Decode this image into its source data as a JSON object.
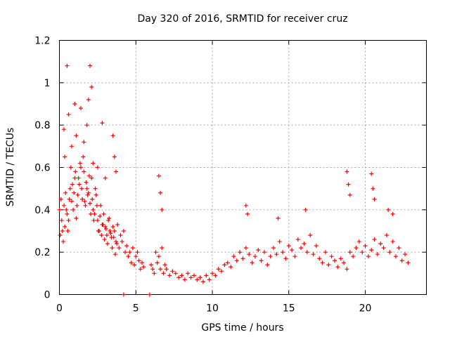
{
  "chart_data": {
    "type": "scatter",
    "title": "Day 320 of 2016, SRMTID for receiver cruz",
    "xlabel": "GPS time / hours",
    "ylabel": "SRMTID / TECUs",
    "xlim": [
      0,
      24
    ],
    "ylim": [
      0,
      1.2
    ],
    "grid": true,
    "marker": "plus",
    "color": "#ff0000",
    "x_ticks": [
      0,
      5,
      10,
      15,
      20
    ],
    "x_tick_labels": [
      "0",
      "5",
      "10",
      "15",
      "20"
    ],
    "y_ticks": [
      0,
      0.2,
      0.4,
      0.6,
      0.8,
      1.0,
      1.2
    ],
    "y_tick_labels": [
      "0",
      "0.2",
      "0.4",
      "0.6",
      "0.8",
      "1",
      "1.2"
    ],
    "series": [
      {
        "name": "SRMTID",
        "x": [
          0.0,
          0.1,
          0.2,
          0.3,
          0.4,
          0.5,
          0.6,
          0.7,
          0.8,
          0.9,
          1.0,
          1.1,
          1.2,
          1.3,
          1.4,
          1.5,
          1.6,
          1.7,
          1.8,
          1.9,
          2.0,
          2.1,
          2.2,
          2.3,
          2.4,
          2.5,
          2.6,
          2.7,
          2.8,
          2.9,
          3.0,
          3.1,
          3.2,
          3.3,
          3.4,
          3.5,
          3.6,
          3.7,
          3.8,
          3.9,
          4.0,
          4.1,
          4.2,
          4.3,
          4.4,
          4.5,
          4.6,
          4.7,
          4.8,
          4.9,
          5.0,
          5.1,
          5.2,
          5.3,
          5.4,
          5.5,
          6.0,
          6.1,
          6.2,
          6.3,
          6.4,
          6.5,
          6.6,
          6.7,
          6.8,
          6.9,
          7.0,
          7.2,
          7.4,
          7.6,
          7.8,
          8.0,
          8.2,
          8.4,
          8.6,
          8.8,
          9.0,
          9.2,
          9.4,
          9.6,
          9.8,
          10.0,
          10.2,
          10.4,
          10.6,
          10.8,
          11.0,
          11.2,
          11.4,
          11.6,
          11.8,
          12.0,
          12.2,
          12.4,
          12.6,
          12.8,
          13.0,
          13.2,
          13.4,
          13.6,
          13.8,
          14.0,
          14.2,
          14.4,
          14.6,
          14.8,
          15.0,
          15.2,
          15.4,
          15.6,
          15.8,
          16.0,
          16.2,
          16.4,
          16.6,
          16.8,
          17.0,
          17.2,
          17.4,
          17.6,
          17.8,
          18.0,
          18.2,
          18.4,
          18.6,
          18.8,
          19.0,
          19.2,
          19.4,
          19.6,
          19.8,
          20.0,
          20.2,
          20.4,
          20.6,
          20.8,
          21.0,
          21.2,
          21.4,
          21.6,
          21.8,
          22.0,
          22.2,
          22.4,
          22.6,
          22.8,
          0.05,
          0.15,
          0.25,
          0.35,
          0.45,
          0.55,
          0.65,
          0.75,
          0.85,
          0.95,
          1.05,
          1.15,
          1.25,
          1.35,
          1.45,
          1.55,
          1.65,
          1.75,
          1.85,
          1.95,
          2.05,
          2.15,
          2.25,
          2.35,
          2.45,
          2.55,
          2.65,
          2.75,
          2.85,
          2.95,
          3.05,
          3.15,
          3.25,
          3.35,
          3.45,
          3.55,
          3.65,
          3.75,
          0.3,
          0.35,
          0.5,
          0.6,
          0.8,
          1.0,
          1.1,
          1.4,
          1.6,
          1.8,
          1.9,
          2.0,
          2.1,
          2.2,
          2.5,
          2.8,
          3.0,
          3.5,
          3.6,
          3.7,
          6.5,
          6.6,
          6.7,
          12.2,
          12.3,
          14.3,
          16.1,
          18.8,
          18.9,
          19.0,
          20.4,
          20.5,
          20.6,
          21.5,
          21.8,
          4.2,
          5.9
        ],
        "y": [
          0.4,
          0.45,
          0.3,
          0.42,
          0.48,
          0.38,
          0.35,
          0.5,
          0.44,
          0.4,
          0.55,
          0.36,
          0.47,
          0.52,
          0.6,
          0.45,
          0.58,
          0.42,
          0.5,
          0.48,
          0.43,
          0.55,
          0.4,
          0.38,
          0.47,
          0.35,
          0.3,
          0.42,
          0.33,
          0.38,
          0.32,
          0.28,
          0.35,
          0.3,
          0.27,
          0.32,
          0.3,
          0.25,
          0.33,
          0.22,
          0.28,
          0.25,
          0.3,
          0.2,
          0.23,
          0.18,
          0.2,
          0.15,
          0.22,
          0.14,
          0.18,
          0.2,
          0.16,
          0.12,
          0.15,
          0.13,
          0.14,
          0.12,
          0.1,
          0.2,
          0.15,
          0.18,
          0.12,
          0.22,
          0.1,
          0.14,
          0.12,
          0.09,
          0.11,
          0.1,
          0.08,
          0.09,
          0.07,
          0.1,
          0.08,
          0.09,
          0.07,
          0.08,
          0.06,
          0.09,
          0.07,
          0.1,
          0.09,
          0.12,
          0.11,
          0.14,
          0.15,
          0.13,
          0.18,
          0.16,
          0.2,
          0.17,
          0.22,
          0.19,
          0.15,
          0.18,
          0.21,
          0.16,
          0.2,
          0.14,
          0.18,
          0.22,
          0.19,
          0.25,
          0.2,
          0.17,
          0.23,
          0.21,
          0.18,
          0.26,
          0.22,
          0.24,
          0.2,
          0.28,
          0.19,
          0.23,
          0.17,
          0.15,
          0.2,
          0.14,
          0.18,
          0.16,
          0.13,
          0.17,
          0.15,
          0.12,
          0.2,
          0.18,
          0.22,
          0.25,
          0.2,
          0.23,
          0.18,
          0.21,
          0.26,
          0.19,
          0.24,
          0.22,
          0.28,
          0.2,
          0.25,
          0.18,
          0.22,
          0.16,
          0.19,
          0.15,
          0.28,
          0.35,
          0.25,
          0.32,
          0.4,
          0.3,
          0.45,
          0.6,
          0.52,
          0.48,
          0.58,
          0.42,
          0.55,
          0.62,
          0.5,
          0.65,
          0.44,
          0.53,
          0.47,
          0.56,
          0.38,
          0.45,
          0.35,
          0.5,
          0.42,
          0.3,
          0.37,
          0.28,
          0.33,
          0.26,
          0.31,
          0.24,
          0.36,
          0.29,
          0.22,
          0.27,
          0.19,
          0.24,
          0.78,
          0.65,
          1.08,
          0.85,
          0.7,
          0.9,
          0.75,
          0.88,
          0.72,
          0.8,
          0.92,
          1.08,
          0.98,
          0.62,
          0.6,
          0.81,
          0.55,
          0.75,
          0.65,
          0.58,
          0.56,
          0.48,
          0.4,
          0.42,
          0.38,
          0.36,
          0.4,
          0.58,
          0.52,
          0.47,
          0.57,
          0.5,
          0.45,
          0.4,
          0.38,
          0.0,
          0.0
        ]
      }
    ]
  }
}
